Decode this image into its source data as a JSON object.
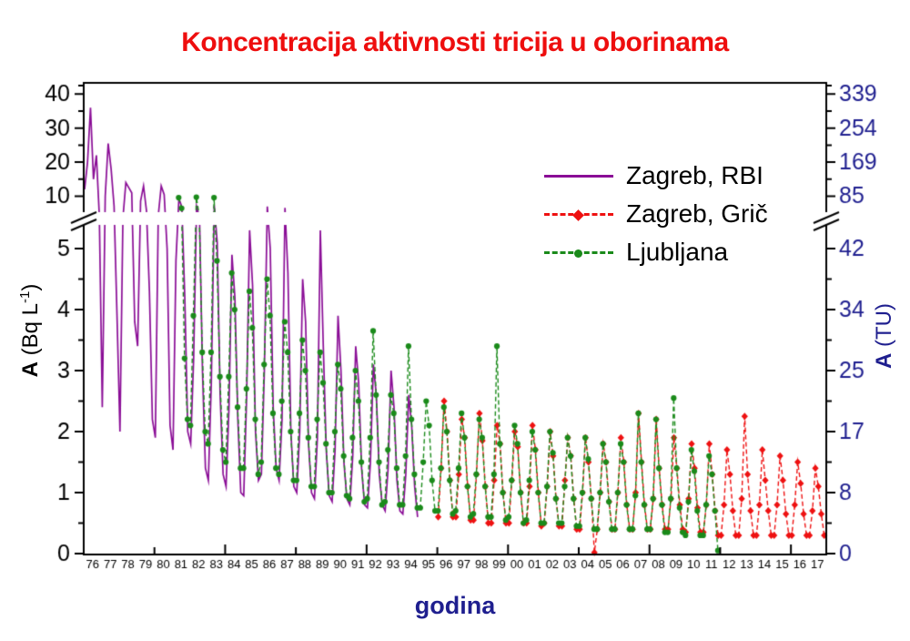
{
  "title": {
    "text": "Koncentracija aktivnosti tricija u oborinama",
    "color": "#ee0e0e"
  },
  "xaxis": {
    "title": "godina",
    "title_color": "#1f1f8f"
  },
  "yaxis_left": {
    "label_bold": "A",
    "label_rest": " (Bq L",
    "label_sup": "-1",
    "label_close": ")",
    "color": "#000000"
  },
  "yaxis_right": {
    "label_bold": "A",
    "label_rest": " (TU)",
    "color": "#1f1f8f"
  },
  "legend": {
    "items": [
      {
        "label": "Zagreb, RBI",
        "color": "#8a0d96",
        "line": "solid",
        "marker": "none"
      },
      {
        "label": "Zagreb, Grič",
        "color": "#ee1111",
        "line": "dashed",
        "marker": "diamond"
      },
      {
        "label": "Ljubljana",
        "color": "#1a8a1a",
        "line": "dashed",
        "marker": "circle"
      }
    ]
  },
  "chart_data": {
    "type": "line",
    "title": "Koncentracija aktivnosti tricija u oborinama",
    "xlabel": "godina",
    "ylabel_left": "A (Bq L-1)",
    "ylabel_right": "A (TU)",
    "x_range": [
      1976,
      2018
    ],
    "broken_y_axis": true,
    "y_segments": {
      "lower_range_BqL": [
        0,
        5.5
      ],
      "upper_range_BqL": [
        8,
        43.5
      ],
      "note": "axis break between 5.5 and 10 Bq/L (42 and 85 TU)"
    },
    "axis_color": "#000000",
    "left_tick_color": "#000000",
    "right_tick_color": "#1f1f8f",
    "left_ticks_lower": [
      {
        "v": 0,
        "label": "0"
      },
      {
        "v": 1,
        "label": "1"
      },
      {
        "v": 2,
        "label": "2"
      },
      {
        "v": 3,
        "label": "3"
      },
      {
        "v": 4,
        "label": "4"
      },
      {
        "v": 5,
        "label": "5"
      }
    ],
    "left_ticks_upper": [
      {
        "v": 10,
        "label": "10"
      },
      {
        "v": 20,
        "label": "20"
      },
      {
        "v": 30,
        "label": "30"
      },
      {
        "v": 40,
        "label": "40"
      }
    ],
    "left_minor_lower": [
      0.5,
      1.5,
      2.5,
      3.5,
      4.5
    ],
    "left_minor_upper": [
      15,
      25,
      35,
      42.5
    ],
    "right_ticks_lower": [
      {
        "v": 0,
        "label": "0"
      },
      {
        "v": 1,
        "label": "8"
      },
      {
        "v": 2,
        "label": "17"
      },
      {
        "v": 3,
        "label": "25"
      },
      {
        "v": 4,
        "label": "34"
      },
      {
        "v": 5,
        "label": "42"
      }
    ],
    "right_ticks_upper": [
      {
        "v": 10,
        "label": "85"
      },
      {
        "v": 20,
        "label": "169"
      },
      {
        "v": 30,
        "label": "254"
      },
      {
        "v": 40,
        "label": "339"
      }
    ],
    "x_tick_years": [
      1980,
      1984,
      1988,
      1992,
      1996,
      2000,
      2004,
      2008,
      2012,
      2016
    ],
    "x_tick_labels": [
      "76",
      "77",
      "78",
      "79",
      "80",
      "81",
      "82",
      "83",
      "84",
      "85",
      "86",
      "87",
      "88",
      "89",
      "90",
      "91",
      "92",
      "93",
      "94",
      "95",
      "96",
      "97",
      "98",
      "99",
      "00",
      "01",
      "02",
      "03",
      "04",
      "05",
      "06",
      "07",
      "08",
      "09",
      "10",
      "11",
      "12",
      "13",
      "14",
      "15",
      "16",
      "17"
    ],
    "series": [
      {
        "name": "Zagreb, RBI",
        "color": "#8a0d96",
        "line": "solid",
        "marker": "none",
        "start_year": 1976.05,
        "step_years": 0.16667,
        "values": [
          12,
          20,
          36,
          15,
          22,
          6,
          2.4,
          10,
          25.5,
          18,
          8,
          3.9,
          2,
          5.5,
          14,
          12.5,
          11,
          3.8,
          3.4,
          9,
          13,
          7,
          4.3,
          2.2,
          1.9,
          6,
          13,
          10.5,
          5,
          2.1,
          1.7,
          4.8,
          9.5,
          7.8,
          4.2,
          2,
          1.8,
          3.2,
          7.9,
          5.6,
          3,
          1.4,
          1.2,
          2.8,
          8.1,
          5.1,
          2.6,
          1.3,
          1.1,
          2.4,
          4.9,
          4.2,
          2.2,
          1,
          0.95,
          2.6,
          5.3,
          4.4,
          2,
          1.2,
          1.3,
          3,
          7.9,
          5,
          2.4,
          1.4,
          1.2,
          2.2,
          7.6,
          4.6,
          2,
          1.1,
          1,
          2,
          4.5,
          3.8,
          1.8,
          1,
          0.9,
          1.9,
          5.3,
          3.4,
          1.7,
          0.95,
          0.85,
          1.7,
          3.9,
          3,
          1.5,
          0.9,
          0.8,
          1.6,
          3.4,
          2.8,
          1.4,
          0.8,
          0.75,
          1.5,
          3.1,
          2.6,
          1.3,
          0.8,
          0.7,
          1.4,
          3,
          2.4,
          1.2,
          0.7,
          0.65,
          1.3,
          2.6,
          2.1,
          1.1,
          0.6
        ]
      },
      {
        "name": "Zagreb, Grič",
        "color": "#ee1111",
        "line": "dashed",
        "marker": "diamond",
        "start_year": 1996.05,
        "step_years": 0.16667,
        "values": [
          0.6,
          1.4,
          2.5,
          2,
          1.2,
          0.6,
          0.6,
          1.3,
          2.2,
          1.9,
          1.1,
          0.55,
          0.55,
          1.3,
          2.3,
          1.85,
          1.1,
          0.5,
          0.5,
          1.2,
          2.1,
          1.8,
          1,
          0.5,
          0.5,
          1.2,
          2,
          1.75,
          1,
          0.5,
          0.5,
          1.1,
          2.1,
          1.7,
          1,
          0.45,
          0.5,
          1.1,
          2,
          1.6,
          0.9,
          0.45,
          0.45,
          1.2,
          1.9,
          1.6,
          0.9,
          0.4,
          0.4,
          1,
          1.9,
          1.5,
          0.9,
          0.02,
          0.4,
          1,
          1.8,
          1.5,
          0.85,
          0.4,
          0.4,
          1,
          1.9,
          1.5,
          0.8,
          0.4,
          0.4,
          1,
          2.3,
          1.5,
          0.8,
          0.4,
          0.4,
          0.9,
          2.2,
          1.4,
          0.8,
          0.4,
          0.4,
          0.9,
          1.9,
          1.4,
          0.8,
          0.4,
          0.35,
          0.9,
          1.8,
          1.4,
          0.75,
          0.35,
          0.35,
          0.8,
          1.8,
          1.3,
          0.7,
          0.3,
          0.3,
          0.8,
          1.7,
          1.3,
          0.7,
          0.3,
          0.3,
          0.9,
          2.25,
          1.3,
          0.7,
          0.3,
          0.3,
          0.8,
          1.7,
          1.2,
          0.7,
          0.3,
          0.3,
          0.8,
          1.6,
          1.2,
          0.65,
          0.3,
          0.3,
          0.8,
          1.5,
          1.15,
          0.65,
          0.3,
          0.3,
          0.7,
          1.4,
          1.1,
          0.65,
          0.3
        ]
      },
      {
        "name": "Ljubljana",
        "color": "#1a8a1a",
        "line": "dashed",
        "marker": "circle",
        "start_year": 1981.37,
        "step_years": 0.16667,
        "values": [
          9.7,
          7.5,
          3.2,
          2.2,
          2.1,
          3.9,
          9.8,
          6,
          3.3,
          2,
          1.8,
          3.3,
          9.7,
          4.8,
          2.9,
          1.7,
          1.5,
          2.9,
          4.6,
          4,
          2.4,
          1.4,
          1.4,
          2.7,
          4.3,
          3.7,
          2.2,
          1.3,
          1.5,
          3.1,
          4.5,
          3.9,
          2.3,
          1.4,
          1.3,
          2.5,
          3.8,
          3.3,
          2,
          1.2,
          1.2,
          2.3,
          3.5,
          3,
          1.9,
          1.1,
          1.1,
          2.2,
          3.3,
          2.8,
          1.8,
          1,
          1,
          2,
          3.1,
          2.7,
          1.6,
          0.95,
          0.9,
          1.9,
          3,
          2.5,
          1.5,
          0.85,
          0.9,
          1.9,
          3.65,
          2.6,
          1.5,
          0.8,
          0.85,
          1.7,
          2.6,
          2.3,
          1.4,
          0.8,
          0.8,
          1.6,
          3.4,
          2.2,
          1.3,
          0.75,
          0.75,
          1.5,
          2.5,
          2.1,
          1.2,
          0.7,
          0.7,
          1.4,
          2.4,
          2,
          1.2,
          0.65,
          0.7,
          1.4,
          2.3,
          1.9,
          1.1,
          0.6,
          0.65,
          1.3,
          2.2,
          1.9,
          1.1,
          0.6,
          0.6,
          1.3,
          3.4,
          1.8,
          1,
          0.55,
          0.6,
          1.2,
          2.1,
          1.8,
          1,
          0.5,
          0.55,
          1.2,
          2,
          1.7,
          1,
          0.5,
          0.5,
          1.1,
          2,
          1.65,
          0.9,
          0.5,
          0.5,
          1.1,
          1.9,
          1.6,
          0.9,
          0.45,
          0.45,
          1,
          1.9,
          1.55,
          0.9,
          0.4,
          0.4,
          1,
          1.8,
          1.5,
          0.85,
          0.4,
          0.4,
          1,
          1.8,
          1.5,
          0.8,
          0.4,
          0.4,
          0.95,
          2.3,
          1.5,
          0.8,
          0.4,
          0.4,
          0.9,
          2.2,
          1.4,
          0.8,
          0.35,
          0.35,
          0.9,
          2.55,
          1.4,
          0.75,
          0.35,
          0.3,
          0.85,
          1.7,
          1.35,
          0.7,
          0.3,
          0.3,
          0.8,
          1.6,
          1.3,
          0.7,
          0.05
        ]
      }
    ]
  }
}
